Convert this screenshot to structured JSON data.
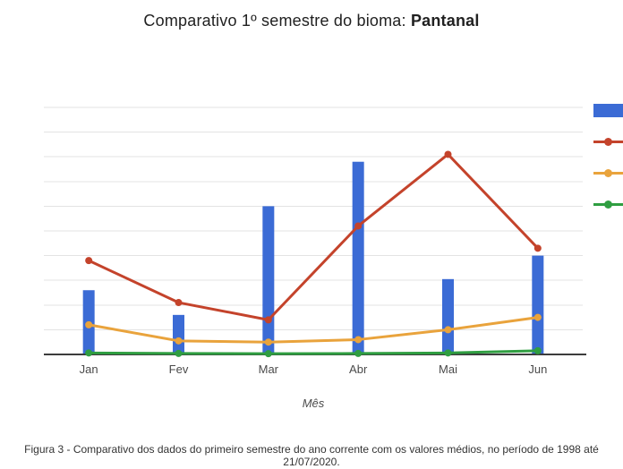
{
  "title": {
    "prefix": "Comparativo 1º semestre do bioma: ",
    "biome": "Pantanal"
  },
  "caption": "Figura 3 - Comparativo dos dados do primeiro semestre do ano corrente com os valores médios, no período de 1998 até 21/07/2020.",
  "chart_data": {
    "type": "combo",
    "categories": [
      "Jan",
      "Fev",
      "Mar",
      "Abr",
      "Mai",
      "Jun"
    ],
    "xlabel": "Mês",
    "ylabel": "",
    "ylim": [
      0,
      10
    ],
    "grid": true,
    "y_tick_labels_visible": false,
    "legend": {
      "position": "right",
      "labels_visible": false
    },
    "colors": {
      "grid": "#e3e3e3",
      "axis": "#3c3c3c",
      "tick_label": "#4a4a4a"
    },
    "series": [
      {
        "name": "bars-blue",
        "kind": "bar",
        "color": "#3b6bd5",
        "values": [
          2.6,
          1.6,
          6.0,
          7.8,
          3.05,
          4.0
        ]
      },
      {
        "name": "line-red",
        "kind": "line",
        "color": "#c4432b",
        "values": [
          3.8,
          2.1,
          1.4,
          5.2,
          8.1,
          4.3
        ]
      },
      {
        "name": "line-orange",
        "kind": "line",
        "color": "#e9a33c",
        "values": [
          1.2,
          0.55,
          0.5,
          0.6,
          1.0,
          1.5
        ]
      },
      {
        "name": "line-green",
        "kind": "line",
        "color": "#2f9e41",
        "values": [
          0.06,
          0.04,
          0.03,
          0.04,
          0.06,
          0.15
        ]
      }
    ]
  }
}
